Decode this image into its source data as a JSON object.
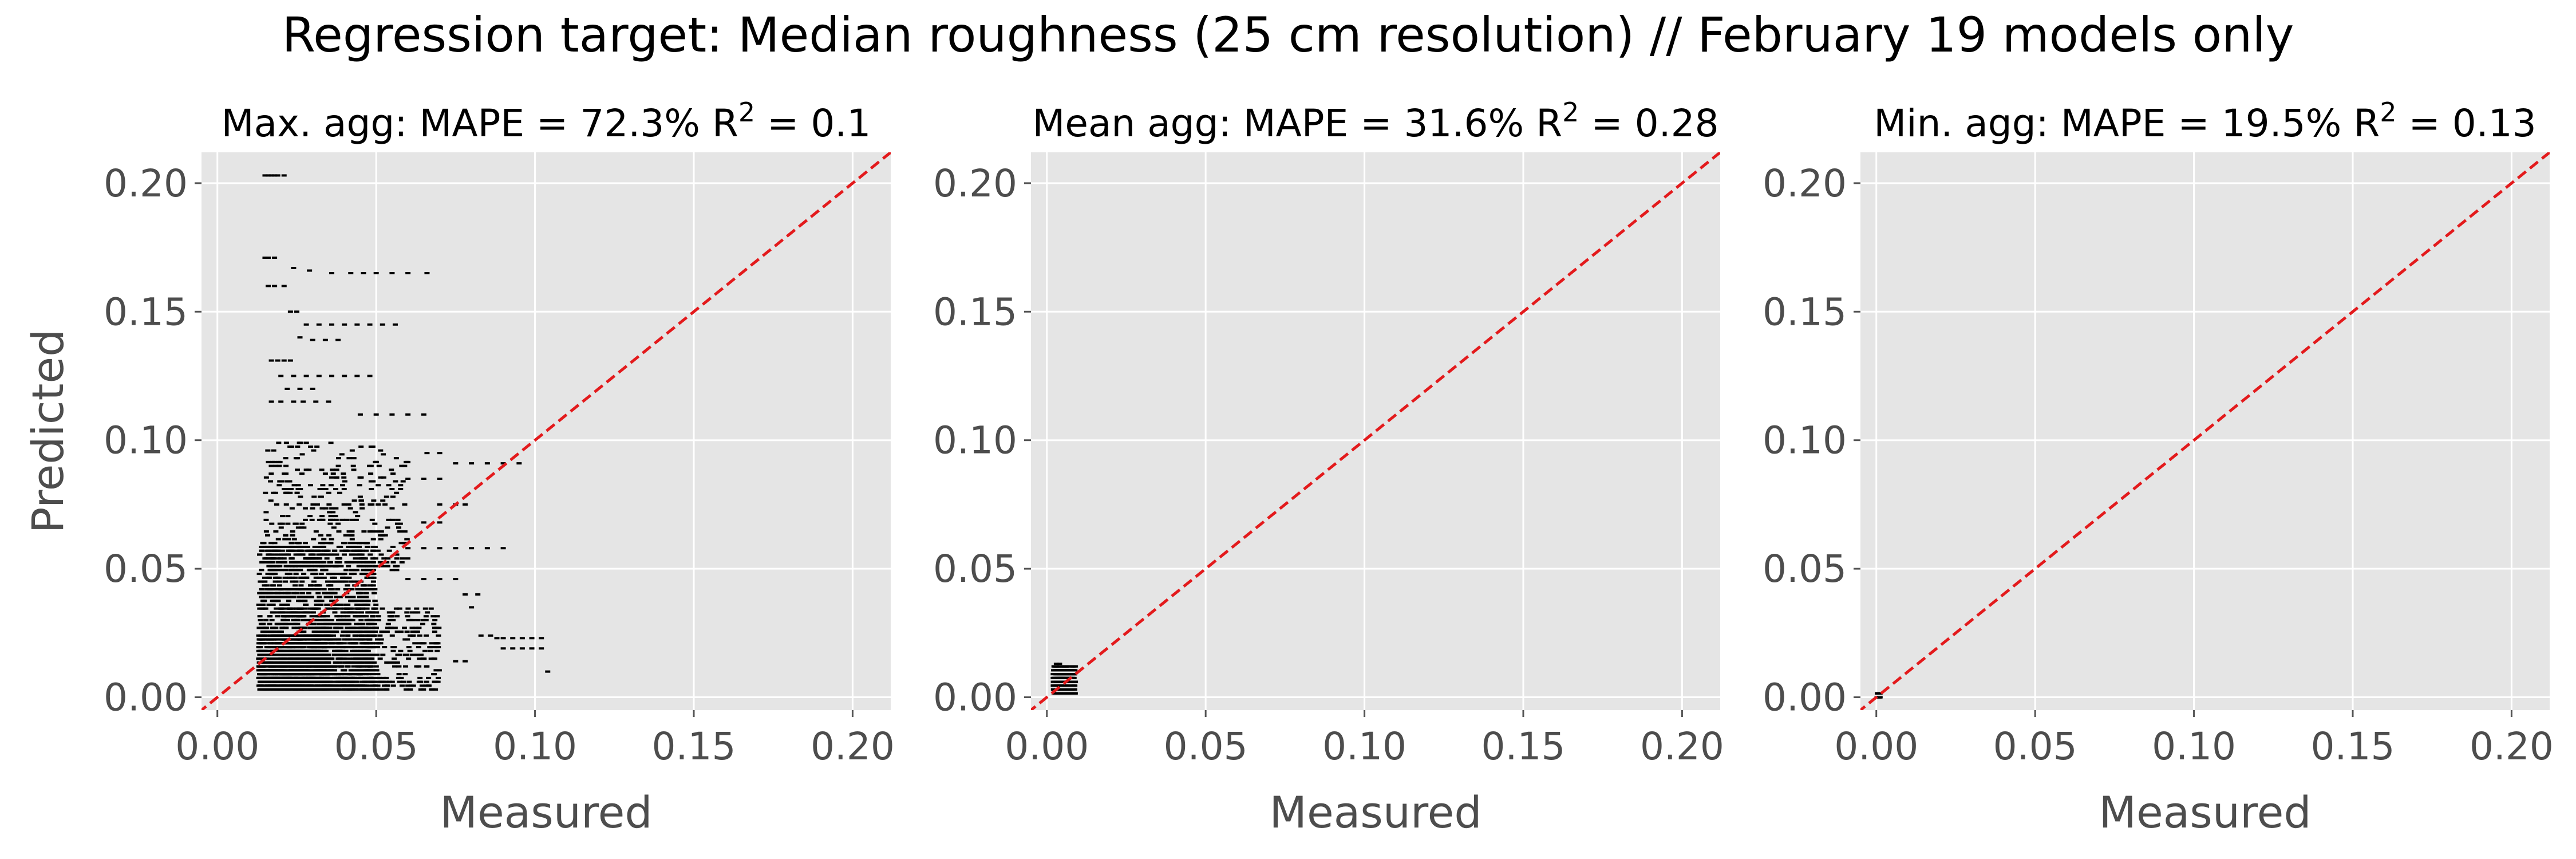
{
  "figure": {
    "suptitle": "Regression target: Median roughness (25 cm resolution) // February 19 models only"
  },
  "chart_data": [
    {
      "type": "scatter",
      "title_prefix": "Max. agg:  MAPE = 72.3%  R",
      "title_sup": "2",
      "title_suffix": " = 0.1",
      "xlabel": "Measured",
      "ylabel": "Predicted",
      "xlim": [
        -0.005,
        0.212
      ],
      "ylim": [
        -0.005,
        0.212
      ],
      "xticks": [
        0.0,
        0.05,
        0.1,
        0.15,
        0.2
      ],
      "yticks": [
        0.0,
        0.05,
        0.1,
        0.15,
        0.2
      ],
      "xtick_labels": [
        "0.00",
        "0.05",
        "0.10",
        "0.15",
        "0.20"
      ],
      "ytick_labels": [
        "0.00",
        "0.05",
        "0.10",
        "0.15",
        "0.20"
      ],
      "grid": true,
      "identity_line": true,
      "identity_line_color": "#e31a1c",
      "point_color": "#000000",
      "clusters": [
        {
          "x": [
            0.013,
            0.05
          ],
          "y": [
            0.003,
            0.06
          ],
          "n": 1500
        },
        {
          "x": [
            0.013,
            0.035
          ],
          "y": [
            0.003,
            0.025
          ],
          "n": 1000
        },
        {
          "x": [
            0.02,
            0.07
          ],
          "y": [
            0.003,
            0.035
          ],
          "n": 500
        },
        {
          "x": [
            0.015,
            0.06
          ],
          "y": [
            0.05,
            0.1
          ],
          "n": 350
        }
      ],
      "points": [
        {
          "x": 0.015,
          "y": 0.203
        },
        {
          "x": 0.016,
          "y": 0.203
        },
        {
          "x": 0.017,
          "y": 0.203
        },
        {
          "x": 0.018,
          "y": 0.203
        },
        {
          "x": 0.019,
          "y": 0.203
        },
        {
          "x": 0.021,
          "y": 0.203
        },
        {
          "x": 0.015,
          "y": 0.171
        },
        {
          "x": 0.016,
          "y": 0.171
        },
        {
          "x": 0.018,
          "y": 0.171
        },
        {
          "x": 0.024,
          "y": 0.167
        },
        {
          "x": 0.029,
          "y": 0.166
        },
        {
          "x": 0.036,
          "y": 0.165
        },
        {
          "x": 0.042,
          "y": 0.165
        },
        {
          "x": 0.046,
          "y": 0.165
        },
        {
          "x": 0.05,
          "y": 0.165
        },
        {
          "x": 0.055,
          "y": 0.165
        },
        {
          "x": 0.06,
          "y": 0.165
        },
        {
          "x": 0.066,
          "y": 0.165
        },
        {
          "x": 0.016,
          "y": 0.16
        },
        {
          "x": 0.018,
          "y": 0.16
        },
        {
          "x": 0.021,
          "y": 0.16
        },
        {
          "x": 0.023,
          "y": 0.15
        },
        {
          "x": 0.025,
          "y": 0.15
        },
        {
          "x": 0.028,
          "y": 0.145
        },
        {
          "x": 0.032,
          "y": 0.145
        },
        {
          "x": 0.036,
          "y": 0.145
        },
        {
          "x": 0.04,
          "y": 0.145
        },
        {
          "x": 0.044,
          "y": 0.145
        },
        {
          "x": 0.048,
          "y": 0.145
        },
        {
          "x": 0.052,
          "y": 0.145
        },
        {
          "x": 0.056,
          "y": 0.145
        },
        {
          "x": 0.026,
          "y": 0.14
        },
        {
          "x": 0.03,
          "y": 0.139
        },
        {
          "x": 0.034,
          "y": 0.139
        },
        {
          "x": 0.038,
          "y": 0.139
        },
        {
          "x": 0.017,
          "y": 0.131
        },
        {
          "x": 0.019,
          "y": 0.131
        },
        {
          "x": 0.021,
          "y": 0.131
        },
        {
          "x": 0.023,
          "y": 0.131
        },
        {
          "x": 0.02,
          "y": 0.125
        },
        {
          "x": 0.024,
          "y": 0.125
        },
        {
          "x": 0.028,
          "y": 0.125
        },
        {
          "x": 0.032,
          "y": 0.125
        },
        {
          "x": 0.036,
          "y": 0.125
        },
        {
          "x": 0.04,
          "y": 0.125
        },
        {
          "x": 0.044,
          "y": 0.125
        },
        {
          "x": 0.048,
          "y": 0.125
        },
        {
          "x": 0.022,
          "y": 0.12
        },
        {
          "x": 0.026,
          "y": 0.12
        },
        {
          "x": 0.03,
          "y": 0.12
        },
        {
          "x": 0.017,
          "y": 0.115
        },
        {
          "x": 0.02,
          "y": 0.115
        },
        {
          "x": 0.024,
          "y": 0.115
        },
        {
          "x": 0.027,
          "y": 0.115
        },
        {
          "x": 0.031,
          "y": 0.115
        },
        {
          "x": 0.035,
          "y": 0.115
        },
        {
          "x": 0.045,
          "y": 0.11
        },
        {
          "x": 0.05,
          "y": 0.11
        },
        {
          "x": 0.055,
          "y": 0.11
        },
        {
          "x": 0.06,
          "y": 0.11
        },
        {
          "x": 0.065,
          "y": 0.11
        },
        {
          "x": 0.075,
          "y": 0.091
        },
        {
          "x": 0.08,
          "y": 0.091
        },
        {
          "x": 0.085,
          "y": 0.091
        },
        {
          "x": 0.09,
          "y": 0.091
        },
        {
          "x": 0.095,
          "y": 0.091
        },
        {
          "x": 0.066,
          "y": 0.095
        },
        {
          "x": 0.07,
          "y": 0.095
        },
        {
          "x": 0.06,
          "y": 0.085
        },
        {
          "x": 0.065,
          "y": 0.085
        },
        {
          "x": 0.07,
          "y": 0.085
        },
        {
          "x": 0.07,
          "y": 0.075
        },
        {
          "x": 0.075,
          "y": 0.075
        },
        {
          "x": 0.078,
          "y": 0.075
        },
        {
          "x": 0.065,
          "y": 0.068
        },
        {
          "x": 0.07,
          "y": 0.068
        },
        {
          "x": 0.06,
          "y": 0.058
        },
        {
          "x": 0.065,
          "y": 0.058
        },
        {
          "x": 0.07,
          "y": 0.058
        },
        {
          "x": 0.075,
          "y": 0.058
        },
        {
          "x": 0.08,
          "y": 0.058
        },
        {
          "x": 0.085,
          "y": 0.058
        },
        {
          "x": 0.09,
          "y": 0.058
        },
        {
          "x": 0.06,
          "y": 0.046
        },
        {
          "x": 0.065,
          "y": 0.046
        },
        {
          "x": 0.07,
          "y": 0.046
        },
        {
          "x": 0.075,
          "y": 0.046
        },
        {
          "x": 0.078,
          "y": 0.04
        },
        {
          "x": 0.082,
          "y": 0.04
        },
        {
          "x": 0.08,
          "y": 0.035
        },
        {
          "x": 0.083,
          "y": 0.024
        },
        {
          "x": 0.086,
          "y": 0.024
        },
        {
          "x": 0.088,
          "y": 0.023
        },
        {
          "x": 0.09,
          "y": 0.023
        },
        {
          "x": 0.093,
          "y": 0.023
        },
        {
          "x": 0.096,
          "y": 0.023
        },
        {
          "x": 0.099,
          "y": 0.023
        },
        {
          "x": 0.102,
          "y": 0.023
        },
        {
          "x": 0.09,
          "y": 0.019
        },
        {
          "x": 0.093,
          "y": 0.019
        },
        {
          "x": 0.096,
          "y": 0.019
        },
        {
          "x": 0.099,
          "y": 0.019
        },
        {
          "x": 0.102,
          "y": 0.019
        },
        {
          "x": 0.104,
          "y": 0.01
        },
        {
          "x": 0.075,
          "y": 0.014
        },
        {
          "x": 0.078,
          "y": 0.014
        }
      ]
    },
    {
      "type": "scatter",
      "title_prefix": "Mean agg:  MAPE = 31.6%  R",
      "title_sup": "2",
      "title_suffix": " = 0.28",
      "xlabel": "Measured",
      "ylabel": "",
      "xlim": [
        -0.005,
        0.212
      ],
      "ylim": [
        -0.005,
        0.212
      ],
      "xticks": [
        0.0,
        0.05,
        0.1,
        0.15,
        0.2
      ],
      "yticks": [
        0.0,
        0.05,
        0.1,
        0.15,
        0.2
      ],
      "xtick_labels": [
        "0.00",
        "0.05",
        "0.10",
        "0.15",
        "0.20"
      ],
      "ytick_labels": [
        "0.00",
        "0.05",
        "0.10",
        "0.15",
        "0.20"
      ],
      "grid": true,
      "identity_line": true,
      "identity_line_color": "#e31a1c",
      "point_color": "#000000",
      "clusters": [
        {
          "x": [
            0.002,
            0.009
          ],
          "y": [
            0.002,
            0.012
          ],
          "n": 400
        }
      ],
      "points": [
        {
          "x": 0.003,
          "y": 0.013
        },
        {
          "x": 0.004,
          "y": 0.013
        }
      ]
    },
    {
      "type": "scatter",
      "title_prefix": "Min. agg:  MAPE = 19.5%  R",
      "title_sup": "2",
      "title_suffix": " = 0.13",
      "xlabel": "Measured",
      "ylabel": "",
      "xlim": [
        -0.005,
        0.212
      ],
      "ylim": [
        -0.005,
        0.212
      ],
      "xticks": [
        0.0,
        0.05,
        0.1,
        0.15,
        0.2
      ],
      "yticks": [
        0.0,
        0.05,
        0.1,
        0.15,
        0.2
      ],
      "xtick_labels": [
        "0.00",
        "0.05",
        "0.10",
        "0.15",
        "0.20"
      ],
      "ytick_labels": [
        "0.00",
        "0.05",
        "0.10",
        "0.15",
        "0.20"
      ],
      "grid": true,
      "identity_line": true,
      "identity_line_color": "#e31a1c",
      "point_color": "#000000",
      "clusters": [
        {
          "x": [
            0.0002,
            0.0012
          ],
          "y": [
            0.0002,
            0.0012
          ],
          "n": 40
        }
      ],
      "points": []
    }
  ]
}
